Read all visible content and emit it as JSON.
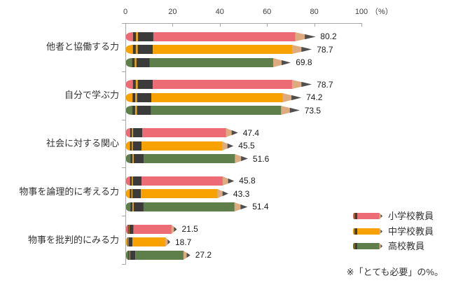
{
  "chart_data": {
    "type": "bar",
    "orientation": "horizontal",
    "bar_style": "pencil",
    "categories": [
      "他者と協働する力",
      "自分で学ぶ力",
      "社会に対する関心",
      "物事を論理的に考える力",
      "物事を批判的にみる力"
    ],
    "series": [
      {
        "name": "小学校教員",
        "color": "#ED6B75",
        "values": [
          80.2,
          78.7,
          47.4,
          45.8,
          21.5
        ]
      },
      {
        "name": "中学校教員",
        "color": "#F7A200",
        "values": [
          78.7,
          74.2,
          45.5,
          43.3,
          18.7
        ]
      },
      {
        "name": "高校教員",
        "color": "#5F7F4A",
        "values": [
          69.8,
          73.5,
          51.6,
          51.4,
          27.2
        ]
      }
    ],
    "x_axis": {
      "position": "top",
      "min": 0,
      "max": 100,
      "ticks": [
        0,
        20,
        40,
        60,
        80,
        100
      ],
      "unit_label": "（%）"
    },
    "grid": false,
    "legend_position": "right-bottom",
    "footnote": "※「とても必要」の%。",
    "colors": {
      "pencil_band": "#3B3B3B",
      "pencil_gold_stripe": "#E6A51C",
      "pencil_wood": "#DEAA7F",
      "pencil_lead": "#4F4F4F",
      "axis": "#A6A6A6",
      "tick_label": "#404040"
    }
  }
}
